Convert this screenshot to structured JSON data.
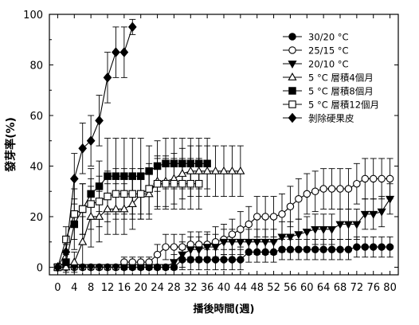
{
  "chart_data": {
    "type": "line",
    "xlabel": "播後時間(週)",
    "ylabel": "發芽率(%)",
    "xlim": [
      -2,
      82
    ],
    "ylim": [
      -3,
      100
    ],
    "xticks": [
      0,
      4,
      8,
      12,
      16,
      20,
      24,
      28,
      32,
      36,
      40,
      44,
      48,
      52,
      56,
      60,
      64,
      68,
      72,
      76,
      80
    ],
    "yticks": [
      0,
      20,
      40,
      60,
      80,
      100
    ],
    "legend_position": "top-right",
    "series": [
      {
        "name": "30/20 °C",
        "marker": "circle-filled",
        "x": [
          0,
          2,
          4,
          6,
          8,
          10,
          12,
          14,
          16,
          18,
          20,
          22,
          24,
          26,
          28,
          30,
          32,
          34,
          36,
          38,
          40,
          42,
          44,
          46,
          48,
          50,
          52,
          54,
          56,
          58,
          60,
          62,
          64,
          66,
          68,
          70,
          72,
          74,
          76,
          78,
          80
        ],
        "y": [
          0,
          0,
          0,
          0,
          0,
          0,
          0,
          0,
          0,
          0,
          0,
          0,
          0,
          0,
          0,
          3,
          3,
          3,
          3,
          3,
          3,
          3,
          3,
          6,
          6,
          6,
          6,
          7,
          7,
          7,
          7,
          7,
          7,
          7,
          7,
          7,
          8,
          8,
          8,
          8,
          8
        ],
        "err": [
          1,
          1,
          1,
          1,
          1,
          1,
          1,
          1,
          1,
          1,
          1,
          1,
          1,
          1,
          1,
          4,
          4,
          4,
          4,
          4,
          4,
          4,
          4,
          4,
          4,
          4,
          4,
          4,
          4,
          4,
          4,
          4,
          4,
          4,
          4,
          4,
          4,
          4,
          4,
          4,
          4
        ]
      },
      {
        "name": "25/15 °C",
        "marker": "circle-open",
        "x": [
          0,
          2,
          4,
          6,
          8,
          10,
          12,
          14,
          16,
          18,
          20,
          22,
          24,
          26,
          28,
          30,
          32,
          34,
          36,
          38,
          40,
          42,
          44,
          46,
          48,
          50,
          52,
          54,
          56,
          58,
          60,
          62,
          64,
          66,
          68,
          70,
          72,
          74,
          76,
          78,
          80
        ],
        "y": [
          0,
          0,
          0,
          0,
          0,
          0,
          0,
          0,
          2,
          2,
          2,
          2,
          5,
          8,
          8,
          8,
          9,
          9,
          9,
          10,
          11,
          13,
          15,
          17,
          20,
          20,
          20,
          21,
          24,
          27,
          29,
          30,
          31,
          31,
          31,
          31,
          33,
          35,
          35,
          35,
          35
        ],
        "err": [
          1,
          1,
          1,
          1,
          1,
          1,
          1,
          1,
          2,
          2,
          2,
          2,
          4,
          5,
          5,
          5,
          5,
          5,
          5,
          6,
          6,
          6,
          7,
          7,
          8,
          8,
          8,
          8,
          8,
          8,
          8,
          8,
          8,
          8,
          8,
          8,
          8,
          8,
          8,
          8,
          8
        ]
      },
      {
        "name": "20/10 °C",
        "marker": "triangle-down-filled",
        "x": [
          0,
          2,
          4,
          6,
          8,
          10,
          12,
          14,
          16,
          18,
          20,
          22,
          24,
          26,
          28,
          30,
          32,
          34,
          36,
          38,
          40,
          42,
          44,
          46,
          48,
          50,
          52,
          54,
          56,
          58,
          60,
          62,
          64,
          66,
          68,
          70,
          72,
          74,
          76,
          78,
          80
        ],
        "y": [
          0,
          0,
          0,
          0,
          0,
          0,
          0,
          0,
          0,
          0,
          0,
          0,
          0,
          0,
          2,
          5,
          7,
          7,
          8,
          8,
          10,
          10,
          10,
          10,
          10,
          10,
          10,
          12,
          12,
          13,
          14,
          15,
          15,
          15,
          17,
          17,
          17,
          21,
          21,
          22,
          27
        ],
        "err": [
          1,
          1,
          1,
          1,
          1,
          1,
          1,
          1,
          1,
          1,
          1,
          1,
          1,
          1,
          3,
          5,
          5,
          5,
          5,
          5,
          5,
          5,
          5,
          5,
          5,
          5,
          5,
          6,
          6,
          6,
          6,
          6,
          6,
          6,
          6,
          6,
          6,
          6,
          6,
          6,
          6
        ]
      },
      {
        "name": "5 °C 層積4個月",
        "marker": "triangle-up-open",
        "x": [
          0,
          2,
          4,
          6,
          8,
          10,
          12,
          14,
          16,
          18,
          20,
          22,
          24,
          26,
          28,
          30,
          32,
          34,
          36,
          38,
          40,
          42,
          44
        ],
        "y": [
          0,
          0,
          2,
          10,
          20,
          20,
          23,
          23,
          23,
          25,
          29,
          29,
          34,
          34,
          35,
          37,
          38,
          38,
          38,
          38,
          38,
          38,
          38
        ],
        "err": [
          1,
          2,
          4,
          10,
          12,
          10,
          10,
          10,
          10,
          10,
          10,
          10,
          10,
          10,
          10,
          10,
          10,
          10,
          10,
          10,
          10,
          10,
          10
        ]
      },
      {
        "name": "5 °C 層積8個月",
        "marker": "square-filled",
        "x": [
          0,
          2,
          4,
          6,
          8,
          10,
          12,
          14,
          16,
          18,
          20,
          22,
          24,
          26,
          28,
          30,
          32,
          34,
          36
        ],
        "y": [
          0,
          2,
          17,
          23,
          29,
          32,
          36,
          36,
          36,
          36,
          36,
          38,
          40,
          41,
          41,
          41,
          41,
          41,
          41
        ],
        "err": [
          1,
          3,
          10,
          10,
          10,
          10,
          15,
          15,
          15,
          15,
          15,
          10,
          10,
          10,
          10,
          10,
          10,
          10,
          10
        ]
      },
      {
        "name": "5 °C 層積12個月",
        "marker": "square-open",
        "x": [
          0,
          2,
          4,
          6,
          8,
          10,
          12,
          14,
          16,
          18,
          20,
          22,
          24,
          26,
          28,
          30,
          32,
          34
        ],
        "y": [
          0,
          11,
          21,
          23,
          25,
          26,
          28,
          29,
          29,
          29,
          29,
          31,
          33,
          33,
          33,
          33,
          33,
          33
        ],
        "err": [
          1,
          5,
          10,
          10,
          10,
          10,
          10,
          10,
          10,
          10,
          10,
          10,
          10,
          10,
          10,
          10,
          10,
          10
        ]
      },
      {
        "name": "剝除硬果皮",
        "marker": "diamond-filled",
        "x": [
          0,
          2,
          4,
          6,
          8,
          10,
          12,
          14,
          16,
          18
        ],
        "y": [
          0,
          6,
          35,
          47,
          50,
          58,
          75,
          85,
          85,
          95
        ],
        "err": [
          1,
          3,
          10,
          10,
          10,
          10,
          10,
          10,
          10,
          3
        ]
      }
    ]
  }
}
